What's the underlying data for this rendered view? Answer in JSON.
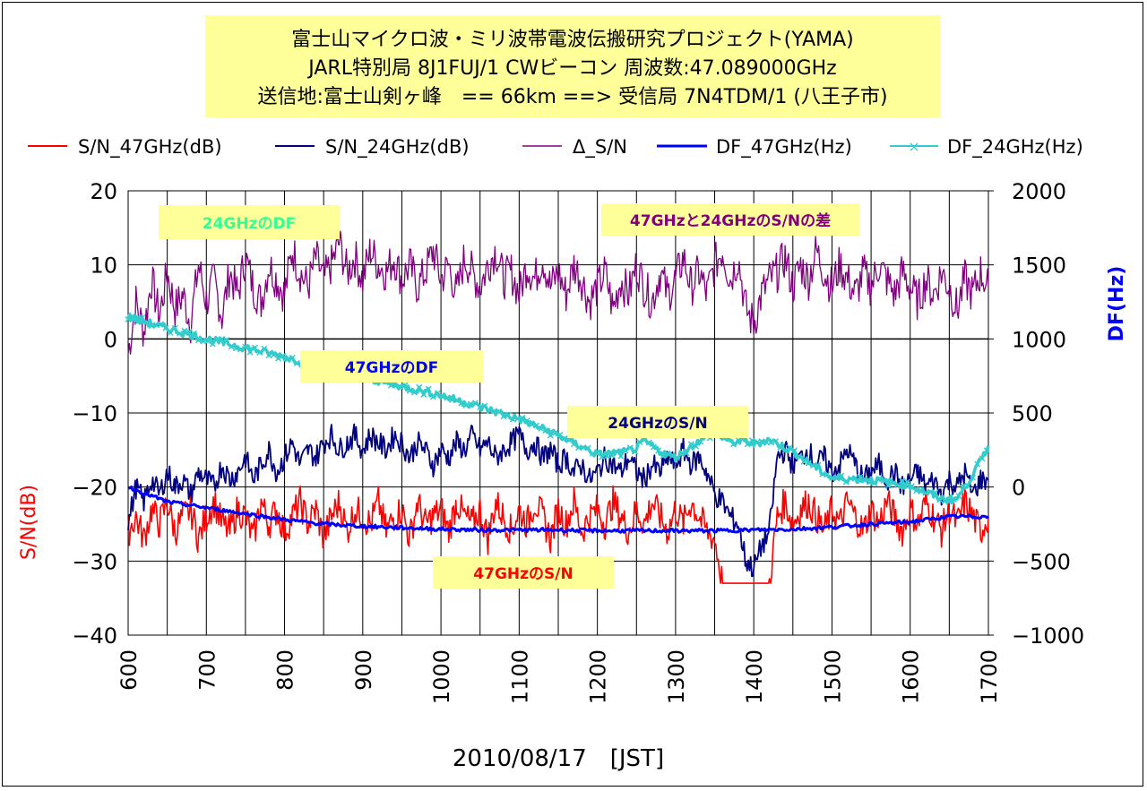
{
  "title_lines": [
    "富士山マイクロ波・ミリ波帯電波伝搬研究プロジェクト(YAMA)",
    "JARL特別局 8J1FUJ/1 CWビーコン 周波数:47.089000GHz",
    "送信地:富士山剣ヶ峰　== 66km ==> 受信局 7N4TDM/1 (八王子市)"
  ],
  "annotations": [
    {
      "text": "24GHzのDF",
      "color": "#33ff99"
    },
    {
      "text": "47GHzと24GHzのS/Nの差",
      "color": "#800080"
    },
    {
      "text": "47GHzのDF",
      "color": "#0000ff"
    },
    {
      "text": "24GHzのS/N",
      "color": "#000080"
    },
    {
      "text": "47GHzのS/N",
      "color": "#ff0000"
    }
  ],
  "chart_data": {
    "type": "line",
    "xlabel": "2010/08/17　[JST]",
    "ylabel_left": "S/N(dB)",
    "ylabel_right": "DF(Hz)",
    "xlim": [
      600,
      1700
    ],
    "ylim_left": [
      -40,
      20
    ],
    "ylim_right": [
      -1000,
      2000
    ],
    "x_ticks": [
      600,
      700,
      800,
      900,
      1000,
      1100,
      1200,
      1300,
      1400,
      1500,
      1600,
      1700
    ],
    "x_tick_labels": [
      "600",
      "700",
      "800",
      "900",
      "1000",
      "1100",
      "1200",
      "1300",
      "1400",
      "1500",
      "1600",
      "1700"
    ],
    "y_left_ticks": [
      20,
      10,
      0,
      -10,
      -20,
      -30,
      -40
    ],
    "y_left_tick_labels": [
      "20",
      "10",
      "0",
      "-10",
      "-20",
      "-30",
      "-40"
    ],
    "y_right_ticks": [
      2000,
      1500,
      1000,
      500,
      0,
      -500,
      -1000
    ],
    "y_right_tick_labels": [
      "2000",
      "1500",
      "1000",
      "500",
      "0",
      "-500",
      "-1000"
    ],
    "grid": true,
    "legend_position": "top",
    "series": [
      {
        "name": "S/N_47GHz(dB)",
        "axis": "left",
        "color": "#ff0000",
        "x": [
          600,
          610,
          620,
          630,
          640,
          650,
          660,
          670,
          680,
          690,
          700,
          710,
          720,
          730,
          740,
          750,
          760,
          770,
          780,
          790,
          800,
          810,
          820,
          830,
          840,
          850,
          860,
          870,
          880,
          890,
          900,
          910,
          920,
          930,
          940,
          950,
          960,
          970,
          980,
          990,
          1000,
          1010,
          1020,
          1030,
          1040,
          1050,
          1060,
          1070,
          1080,
          1090,
          1100,
          1110,
          1120,
          1130,
          1140,
          1150,
          1160,
          1170,
          1180,
          1190,
          1200,
          1210,
          1220,
          1230,
          1240,
          1250,
          1260,
          1270,
          1280,
          1290,
          1300,
          1310,
          1320,
          1330,
          1340,
          1350,
          1360,
          1370,
          1380,
          1390,
          1400,
          1410,
          1420,
          1430,
          1440,
          1450,
          1460,
          1470,
          1480,
          1490,
          1500,
          1510,
          1520,
          1530,
          1540,
          1550,
          1560,
          1570,
          1580,
          1590,
          1600,
          1610,
          1620,
          1630,
          1640,
          1650,
          1660,
          1670,
          1680,
          1690,
          1700
        ],
        "values": [
          -26,
          -24,
          -27,
          -23,
          -25,
          -22,
          -26,
          -24,
          -23,
          -27,
          -24,
          -22,
          -25,
          -26,
          -23,
          -24,
          -27,
          -22,
          -25,
          -23,
          -26,
          -24,
          -22,
          -25,
          -23,
          -27,
          -24,
          -22,
          -26,
          -23,
          -24,
          -25,
          -22,
          -26,
          -24,
          -23,
          -27,
          -22,
          -25,
          -24,
          -23,
          -26,
          -22,
          -24,
          -25,
          -23,
          -27,
          -22,
          -24,
          -26,
          -23,
          -25,
          -22,
          -24,
          -27,
          -23,
          -25,
          -22,
          -26,
          -24,
          -23,
          -25,
          -22,
          -24,
          -26,
          -23,
          -25,
          -22,
          -24,
          -26,
          -23,
          -25,
          -22,
          -24,
          -26,
          -27,
          -33,
          -33,
          -33,
          -33,
          -33,
          -33,
          -33,
          -24,
          -22,
          -25,
          -23,
          -22,
          -24,
          -26,
          -23,
          -25,
          -22,
          -24,
          -26,
          -23,
          -25,
          -22,
          -24,
          -26,
          -23,
          -25,
          -22,
          -24,
          -26,
          -23,
          -25,
          -22,
          -24,
          -26,
          -24
        ]
      },
      {
        "name": "S/N_24GHz(dB)",
        "axis": "left",
        "color": "#000080",
        "x": [
          600,
          610,
          620,
          630,
          640,
          650,
          660,
          670,
          680,
          690,
          700,
          710,
          720,
          730,
          740,
          750,
          760,
          770,
          780,
          790,
          800,
          810,
          820,
          830,
          840,
          850,
          860,
          870,
          880,
          890,
          900,
          910,
          920,
          930,
          940,
          950,
          960,
          970,
          980,
          990,
          1000,
          1010,
          1020,
          1030,
          1040,
          1050,
          1060,
          1070,
          1080,
          1090,
          1100,
          1110,
          1120,
          1130,
          1140,
          1150,
          1160,
          1170,
          1180,
          1190,
          1200,
          1210,
          1220,
          1230,
          1240,
          1250,
          1260,
          1270,
          1280,
          1290,
          1300,
          1310,
          1320,
          1330,
          1340,
          1350,
          1360,
          1370,
          1380,
          1390,
          1400,
          1410,
          1420,
          1430,
          1440,
          1450,
          1460,
          1470,
          1480,
          1490,
          1500,
          1510,
          1520,
          1530,
          1540,
          1550,
          1560,
          1570,
          1580,
          1590,
          1600,
          1610,
          1620,
          1630,
          1640,
          1650,
          1660,
          1670,
          1680,
          1690,
          1700
        ],
        "values": [
          -25,
          -20,
          -22,
          -19,
          -21,
          -18,
          -20,
          -19,
          -21,
          -18,
          -19,
          -20,
          -17,
          -19,
          -18,
          -16,
          -19,
          -17,
          -15,
          -18,
          -16,
          -14,
          -17,
          -15,
          -16,
          -14,
          -13,
          -15,
          -14,
          -13,
          -15,
          -13,
          -14,
          -15,
          -13,
          -14,
          -16,
          -14,
          -15,
          -17,
          -15,
          -16,
          -14,
          -15,
          -13,
          -15,
          -14,
          -16,
          -15,
          -14,
          -13,
          -15,
          -14,
          -16,
          -15,
          -17,
          -16,
          -18,
          -17,
          -19,
          -18,
          -16,
          -17,
          -18,
          -16,
          -18,
          -19,
          -17,
          -18,
          -16,
          -17,
          -15,
          -17,
          -16,
          -18,
          -21,
          -22,
          -24,
          -25,
          -30,
          -31,
          -28,
          -26,
          -16,
          -15,
          -17,
          -16,
          -15,
          -17,
          -16,
          -18,
          -17,
          -15,
          -17,
          -19,
          -18,
          -17,
          -19,
          -18,
          -20,
          -19,
          -18,
          -20,
          -19,
          -21,
          -19,
          -20,
          -18,
          -21,
          -19,
          -19
        ]
      },
      {
        "name": "Δ_S/N",
        "axis": "left",
        "color": "#800080",
        "x": [
          600,
          610,
          620,
          630,
          640,
          650,
          660,
          670,
          680,
          690,
          700,
          710,
          720,
          730,
          740,
          750,
          760,
          770,
          780,
          790,
          800,
          810,
          820,
          830,
          840,
          850,
          860,
          870,
          880,
          890,
          900,
          910,
          920,
          930,
          940,
          950,
          960,
          970,
          980,
          990,
          1000,
          1010,
          1020,
          1030,
          1040,
          1050,
          1060,
          1070,
          1080,
          1090,
          1100,
          1110,
          1120,
          1130,
          1140,
          1150,
          1160,
          1170,
          1180,
          1190,
          1200,
          1210,
          1220,
          1230,
          1240,
          1250,
          1260,
          1270,
          1280,
          1290,
          1300,
          1310,
          1320,
          1330,
          1340,
          1350,
          1360,
          1370,
          1380,
          1390,
          1400,
          1410,
          1420,
          1430,
          1440,
          1450,
          1460,
          1470,
          1480,
          1490,
          1500,
          1510,
          1520,
          1530,
          1540,
          1550,
          1560,
          1570,
          1580,
          1590,
          1600,
          1610,
          1620,
          1630,
          1640,
          1650,
          1660,
          1670,
          1680,
          1690,
          1700
        ],
        "values": [
          -2,
          5,
          1,
          8,
          3,
          9,
          4,
          6,
          2,
          10,
          5,
          8,
          3,
          9,
          6,
          11,
          7,
          5,
          10,
          8,
          6,
          12,
          9,
          7,
          11,
          8,
          10,
          13,
          9,
          11,
          8,
          12,
          10,
          9,
          11,
          8,
          10,
          7,
          9,
          12,
          8,
          10,
          6,
          11,
          9,
          7,
          10,
          12,
          8,
          9,
          6,
          10,
          8,
          11,
          7,
          9,
          6,
          10,
          8,
          5,
          7,
          9,
          4,
          8,
          6,
          10,
          7,
          5,
          9,
          6,
          8,
          11,
          7,
          9,
          6,
          10,
          12,
          8,
          11,
          4,
          2,
          6,
          8,
          9,
          11,
          7,
          10,
          8,
          12,
          9,
          7,
          10,
          8,
          6,
          9,
          7,
          10,
          8,
          6,
          9,
          7,
          5,
          8,
          6,
          9,
          7,
          4,
          8,
          6,
          9,
          7
        ]
      },
      {
        "name": "DF_47GHz(Hz)",
        "axis": "right",
        "color": "#0000ff",
        "x": [
          600,
          650,
          700,
          750,
          800,
          850,
          900,
          950,
          1000,
          1050,
          1100,
          1150,
          1200,
          1250,
          1300,
          1350,
          1400,
          1450,
          1500,
          1550,
          1600,
          1650,
          1700
        ],
        "values": [
          0,
          -100,
          -140,
          -180,
          -220,
          -250,
          -265,
          -275,
          -285,
          -290,
          -290,
          -290,
          -295,
          -295,
          -295,
          -295,
          -290,
          -285,
          -270,
          -250,
          -235,
          -200,
          -200
        ]
      },
      {
        "name": "DF_24GHz(Hz)",
        "axis": "right",
        "color": "#33cccc",
        "x": [
          600,
          650,
          700,
          750,
          800,
          850,
          900,
          950,
          1000,
          1050,
          1100,
          1150,
          1200,
          1230,
          1250,
          1260,
          1280,
          1300,
          1330,
          1350,
          1370,
          1390,
          1400,
          1420,
          1450,
          1480,
          1500,
          1550,
          1600,
          1640,
          1660,
          1680,
          1700
        ],
        "values": [
          1150,
          1070,
          1000,
          940,
          880,
          800,
          740,
          680,
          620,
          540,
          460,
          350,
          220,
          230,
          260,
          310,
          240,
          200,
          310,
          370,
          300,
          310,
          290,
          320,
          240,
          130,
          60,
          50,
          10,
          -80,
          -80,
          80,
          280
        ]
      }
    ]
  }
}
